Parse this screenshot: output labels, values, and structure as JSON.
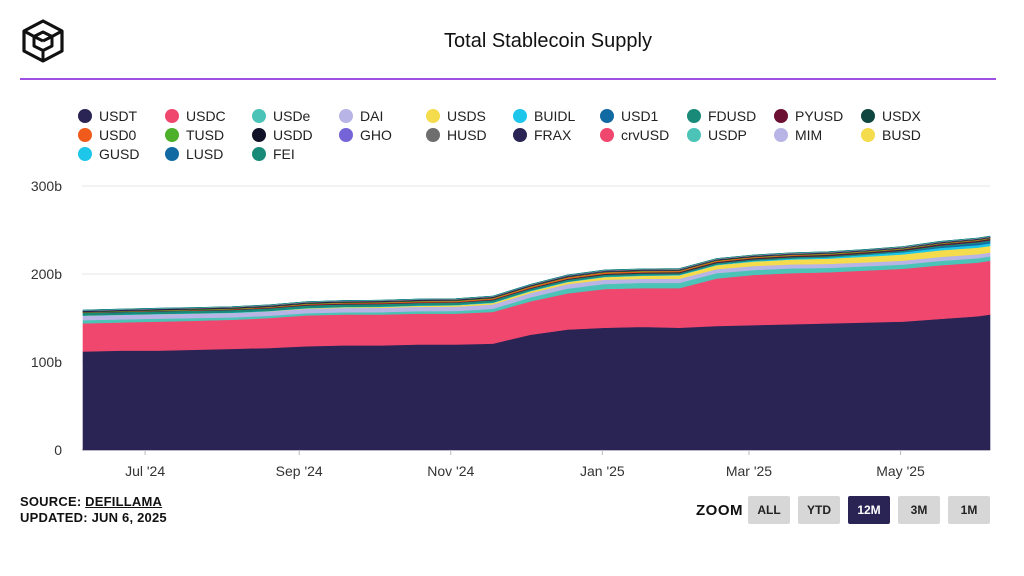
{
  "header": {
    "title": "Total Stablecoin Supply",
    "logo_icon": "cube-logo-icon"
  },
  "legend": [
    {
      "name": "USDT",
      "color": "#2a2455"
    },
    {
      "name": "USDC",
      "color": "#f0476e"
    },
    {
      "name": "USDe",
      "color": "#4cc3b7"
    },
    {
      "name": "DAI",
      "color": "#b8b4e6"
    },
    {
      "name": "USDS",
      "color": "#f4dc4c"
    },
    {
      "name": "BUIDL",
      "color": "#1ec6ea"
    },
    {
      "name": "USD1",
      "color": "#126aa3"
    },
    {
      "name": "FDUSD",
      "color": "#1a8a78"
    },
    {
      "name": "PYUSD",
      "color": "#6b0f33"
    },
    {
      "name": "USDX",
      "color": "#0f4640"
    },
    {
      "name": "USD0",
      "color": "#f05a1a"
    },
    {
      "name": "TUSD",
      "color": "#4cb02a"
    },
    {
      "name": "USDD",
      "color": "#111128"
    },
    {
      "name": "GHO",
      "color": "#7464d8"
    },
    {
      "name": "HUSD",
      "color": "#6e6e6e"
    },
    {
      "name": "FRAX",
      "color": "#2a2455"
    },
    {
      "name": "crvUSD",
      "color": "#f0476e"
    },
    {
      "name": "USDP",
      "color": "#4cc3b7"
    },
    {
      "name": "MIM",
      "color": "#b8b4e6"
    },
    {
      "name": "BUSD",
      "color": "#f4dc4c"
    },
    {
      "name": "GUSD",
      "color": "#1ec6ea"
    },
    {
      "name": "LUSD",
      "color": "#126aa3"
    },
    {
      "name": "FEI",
      "color": "#1a8a78"
    }
  ],
  "chart_data": {
    "type": "area",
    "stacked": true,
    "title": "Total Stablecoin Supply",
    "xlabel": "",
    "ylabel": "",
    "x": [
      "2024-06-06",
      "2024-06-21",
      "2024-07-06",
      "2024-07-21",
      "2024-08-05",
      "2024-08-20",
      "2024-09-04",
      "2024-09-19",
      "2024-10-04",
      "2024-10-19",
      "2024-11-03",
      "2024-11-18",
      "2024-12-03",
      "2024-12-18",
      "2025-01-02",
      "2025-01-17",
      "2025-02-01",
      "2025-02-16",
      "2025-03-03",
      "2025-03-18",
      "2025-04-02",
      "2025-04-17",
      "2025-05-02",
      "2025-05-17",
      "2025-06-01",
      "2025-06-06"
    ],
    "x_tick_labels": [
      "Jul '24",
      "Sep '24",
      "Nov '24",
      "Jan '25",
      "Mar '25",
      "May '25"
    ],
    "x_tick_dates": [
      "2024-07-01",
      "2024-09-01",
      "2024-11-01",
      "2025-01-01",
      "2025-03-01",
      "2025-05-01"
    ],
    "y_ticks": [
      0,
      100,
      200,
      300
    ],
    "y_tick_labels": [
      "0",
      "100b",
      "200b",
      "300b"
    ],
    "ylim": [
      0,
      300
    ],
    "unit": "b",
    "grid": true,
    "legend_position": "top",
    "series": [
      {
        "name": "USDT",
        "color": "#2a2455",
        "values": [
          112,
          113,
          113,
          114,
          115,
          116,
          118,
          119,
          119,
          120,
          120,
          121,
          131,
          137,
          139,
          140,
          139,
          141,
          142,
          143,
          144,
          145,
          146,
          149,
          152,
          154
        ]
      },
      {
        "name": "USDC",
        "color": "#f0476e",
        "values": [
          32,
          32,
          33,
          33,
          33,
          34,
          35,
          35,
          35,
          35,
          35,
          36,
          38,
          41,
          44,
          44,
          45,
          54,
          57,
          58,
          58,
          59,
          60,
          61,
          61,
          61
        ]
      },
      {
        "name": "USDe",
        "color": "#4cc3b7",
        "values": [
          3.6,
          3.5,
          3.3,
          3.0,
          2.8,
          2.6,
          2.6,
          2.6,
          2.7,
          2.8,
          3.0,
          3.5,
          4.5,
          5.5,
          5.8,
          6.0,
          6.0,
          6.0,
          5.6,
          5.4,
          5.0,
          4.8,
          4.8,
          5.0,
          5.0,
          5.0
        ]
      },
      {
        "name": "DAI",
        "color": "#b8b4e6",
        "values": [
          5.0,
          5.0,
          5.0,
          5.0,
          5.0,
          5.0,
          5.0,
          5.0,
          5.0,
          5.0,
          5.0,
          5.0,
          5.0,
          5.0,
          4.8,
          4.6,
          4.6,
          4.6,
          4.6,
          4.6,
          4.5,
          4.5,
          4.5,
          4.5,
          4.5,
          4.5
        ]
      },
      {
        "name": "USDS",
        "color": "#f4dc4c",
        "values": [
          0.1,
          0.1,
          0.1,
          0.1,
          0.1,
          0.2,
          0.5,
          0.8,
          1.0,
          1.2,
          1.5,
          1.8,
          2.0,
          2.5,
          3.0,
          3.5,
          4.0,
          4.5,
          5.0,
          5.5,
          6.0,
          6.5,
          7.0,
          7.5,
          7.5,
          7.5
        ]
      },
      {
        "name": "BUIDL",
        "color": "#1ec6ea",
        "values": [
          0.4,
          0.5,
          0.5,
          0.5,
          0.5,
          0.5,
          0.5,
          0.5,
          0.6,
          0.6,
          0.6,
          0.6,
          0.6,
          0.6,
          0.6,
          0.6,
          0.7,
          0.8,
          1.0,
          1.2,
          1.5,
          2.0,
          2.5,
          2.7,
          2.8,
          2.9
        ]
      },
      {
        "name": "USD1",
        "color": "#126aa3",
        "values": [
          0,
          0,
          0,
          0,
          0,
          0,
          0,
          0,
          0,
          0,
          0,
          0,
          0,
          0,
          0,
          0,
          0,
          0,
          0,
          0,
          0,
          0.1,
          0.5,
          1.5,
          2.2,
          2.2
        ]
      },
      {
        "name": "FDUSD",
        "color": "#1a8a78",
        "values": [
          2.8,
          2.8,
          2.8,
          2.8,
          2.8,
          2.8,
          2.8,
          2.7,
          2.7,
          2.6,
          2.5,
          2.5,
          2.2,
          2.0,
          2.0,
          1.9,
          1.8,
          1.7,
          1.6,
          1.5,
          1.5,
          1.4,
          1.3,
          1.3,
          1.3,
          1.3
        ]
      },
      {
        "name": "PYUSD",
        "color": "#6b0f33",
        "values": [
          0.4,
          0.4,
          0.5,
          0.5,
          0.6,
          0.7,
          0.9,
          0.9,
          0.8,
          0.8,
          0.7,
          0.6,
          0.5,
          0.5,
          0.5,
          0.5,
          0.5,
          0.6,
          0.7,
          0.8,
          0.9,
          0.9,
          0.9,
          0.9,
          0.9,
          0.9
        ]
      },
      {
        "name": "USDX",
        "color": "#0f4640",
        "values": [
          0,
          0,
          0,
          0,
          0,
          0,
          0,
          0,
          0,
          0,
          0,
          0.2,
          0.4,
          0.6,
          0.7,
          0.7,
          0.7,
          0.7,
          0.7,
          0.7,
          0.7,
          0.7,
          0.7,
          0.7,
          0.7,
          0.7
        ]
      },
      {
        "name": "USD0",
        "color": "#f05a1a",
        "values": [
          0.1,
          0.2,
          0.3,
          0.4,
          0.5,
          0.6,
          0.7,
          0.8,
          0.9,
          1.0,
          1.1,
          1.2,
          1.4,
          1.5,
          1.5,
          1.4,
          1.3,
          1.2,
          1.0,
          0.9,
          0.7,
          0.6,
          0.6,
          0.6,
          0.6,
          0.6
        ]
      },
      {
        "name": "TUSD",
        "color": "#4cb02a",
        "values": [
          0.5,
          0.5,
          0.5,
          0.5,
          0.5,
          0.5,
          0.5,
          0.5,
          0.5,
          0.5,
          0.5,
          0.5,
          0.5,
          0.5,
          0.5,
          0.5,
          0.5,
          0.5,
          0.5,
          0.5,
          0.5,
          0.5,
          0.5,
          0.5,
          0.5,
          0.5
        ]
      },
      {
        "name": "USDD",
        "color": "#111128",
        "values": [
          0.7,
          0.7,
          0.7,
          0.7,
          0.7,
          0.7,
          0.7,
          0.7,
          0.7,
          0.7,
          0.7,
          0.7,
          0.7,
          0.7,
          0.7,
          0.7,
          0.7,
          0.6,
          0.6,
          0.6,
          0.6,
          0.5,
          0.5,
          0.5,
          0.5,
          0.5
        ]
      },
      {
        "name": "GHO",
        "color": "#7464d8",
        "values": [
          0.1,
          0.1,
          0.1,
          0.1,
          0.1,
          0.1,
          0.1,
          0.1,
          0.1,
          0.1,
          0.1,
          0.1,
          0.1,
          0.2,
          0.2,
          0.2,
          0.2,
          0.2,
          0.2,
          0.2,
          0.2,
          0.2,
          0.2,
          0.2,
          0.2,
          0.2
        ]
      },
      {
        "name": "HUSD",
        "color": "#6e6e6e",
        "values": [
          0.1,
          0.1,
          0.1,
          0.1,
          0.1,
          0.1,
          0.1,
          0.1,
          0.1,
          0.1,
          0.1,
          0.1,
          0.1,
          0.1,
          0.1,
          0.1,
          0.1,
          0.1,
          0.1,
          0.1,
          0.1,
          0.1,
          0.1,
          0.1,
          0.1,
          0.1
        ]
      },
      {
        "name": "FRAX",
        "color": "#2a2455",
        "values": [
          0.6,
          0.6,
          0.6,
          0.6,
          0.6,
          0.6,
          0.6,
          0.6,
          0.6,
          0.6,
          0.6,
          0.6,
          0.6,
          0.6,
          0.6,
          0.5,
          0.5,
          0.5,
          0.5,
          0.5,
          0.5,
          0.5,
          0.5,
          0.5,
          0.5,
          0.5
        ]
      },
      {
        "name": "crvUSD",
        "color": "#f0476e",
        "values": [
          0.1,
          0.1,
          0.1,
          0.1,
          0.1,
          0.1,
          0.1,
          0.1,
          0.1,
          0.1,
          0.1,
          0.1,
          0.1,
          0.1,
          0.1,
          0.1,
          0.1,
          0.1,
          0.1,
          0.1,
          0.1,
          0.1,
          0.1,
          0.1,
          0.1,
          0.1
        ]
      },
      {
        "name": "USDP",
        "color": "#4cc3b7",
        "values": [
          0.1,
          0.1,
          0.1,
          0.1,
          0.1,
          0.1,
          0.1,
          0.1,
          0.1,
          0.1,
          0.1,
          0.1,
          0.1,
          0.1,
          0.1,
          0.1,
          0.1,
          0.1,
          0.1,
          0.1,
          0.1,
          0.1,
          0.1,
          0.1,
          0.1,
          0.1
        ]
      },
      {
        "name": "MIM",
        "color": "#b8b4e6",
        "values": [
          0.1,
          0.1,
          0.1,
          0.1,
          0.1,
          0.1,
          0.1,
          0.1,
          0.1,
          0.1,
          0.1,
          0.1,
          0.1,
          0.1,
          0.1,
          0.1,
          0.1,
          0.1,
          0.1,
          0.1,
          0.1,
          0.1,
          0.1,
          0.1,
          0.1,
          0.1
        ]
      },
      {
        "name": "BUSD",
        "color": "#f4dc4c",
        "values": [
          0.1,
          0.1,
          0.1,
          0.1,
          0.1,
          0.1,
          0.1,
          0.1,
          0.1,
          0.1,
          0.1,
          0.1,
          0.1,
          0.1,
          0.1,
          0.1,
          0.1,
          0.1,
          0.1,
          0.1,
          0.1,
          0.1,
          0.1,
          0.1,
          0.1,
          0.1
        ]
      },
      {
        "name": "GUSD",
        "color": "#1ec6ea",
        "values": [
          0.1,
          0.1,
          0.1,
          0.1,
          0.1,
          0.1,
          0.1,
          0.1,
          0.1,
          0.1,
          0.1,
          0.1,
          0.1,
          0.1,
          0.1,
          0.1,
          0.1,
          0.1,
          0.1,
          0.1,
          0.1,
          0.1,
          0.1,
          0.1,
          0.1,
          0.1
        ]
      },
      {
        "name": "LUSD",
        "color": "#126aa3",
        "values": [
          0.1,
          0.1,
          0.1,
          0.1,
          0.1,
          0.1,
          0.1,
          0.1,
          0.1,
          0.1,
          0.1,
          0.1,
          0.1,
          0.1,
          0.1,
          0.1,
          0.1,
          0.1,
          0.1,
          0.1,
          0.1,
          0.1,
          0.1,
          0.1,
          0.1,
          0.1
        ]
      },
      {
        "name": "FEI",
        "color": "#1a8a78",
        "values": [
          0,
          0,
          0,
          0,
          0,
          0,
          0,
          0,
          0,
          0,
          0,
          0,
          0,
          0,
          0,
          0,
          0,
          0,
          0,
          0,
          0,
          0,
          0,
          0,
          0,
          0
        ]
      }
    ]
  },
  "footer": {
    "source_prefix": "SOURCE: ",
    "source_name": "DEFILLAMA",
    "updated": "UPDATED: JUN 6, 2025"
  },
  "zoom": {
    "label": "ZOOM",
    "options": [
      "ALL",
      "YTD",
      "12M",
      "3M",
      "1M"
    ],
    "active": "12M"
  }
}
